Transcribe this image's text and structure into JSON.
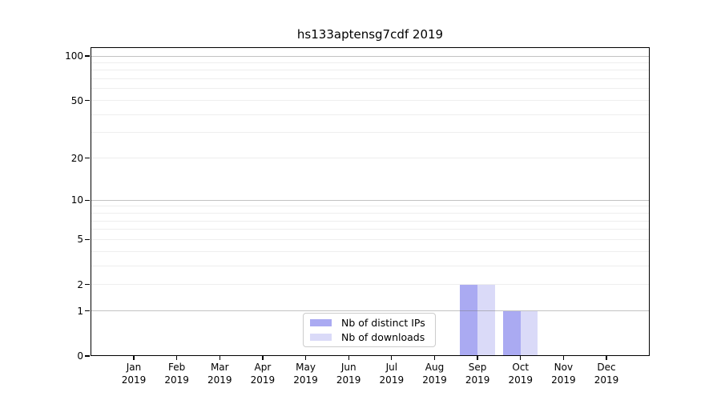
{
  "chart_data": {
    "type": "bar",
    "title": "hs133aptensg7cdf 2019",
    "year": "2019",
    "categories": [
      "Jan",
      "Feb",
      "Mar",
      "Apr",
      "May",
      "Jun",
      "Jul",
      "Aug",
      "Sep",
      "Oct",
      "Nov",
      "Dec"
    ],
    "series": [
      {
        "key": "distinct-ips",
        "name": "Nb of distinct IPs",
        "color": "#aaaaf2",
        "values": [
          0,
          0,
          0,
          0,
          0,
          0,
          0,
          0,
          2,
          1,
          0,
          0
        ]
      },
      {
        "key": "downloads",
        "name": "Nb of downloads",
        "color": "#dadaf8",
        "values": [
          0,
          0,
          0,
          0,
          0,
          0,
          0,
          0,
          2,
          1,
          0,
          0
        ]
      }
    ],
    "yscale": "log1p",
    "yticks": [
      0,
      1,
      2,
      5,
      10,
      20,
      50,
      100
    ],
    "ylim": [
      0,
      115
    ],
    "grid": "horizontal",
    "legend_position": "bottom-center"
  },
  "colors": {
    "background": "#ffffff",
    "axis": "#000000",
    "grid_major": "rgba(120,120,120,0.45)",
    "grid_minor": "rgba(120,120,120,0.13)",
    "legend_border": "#cccccc"
  }
}
